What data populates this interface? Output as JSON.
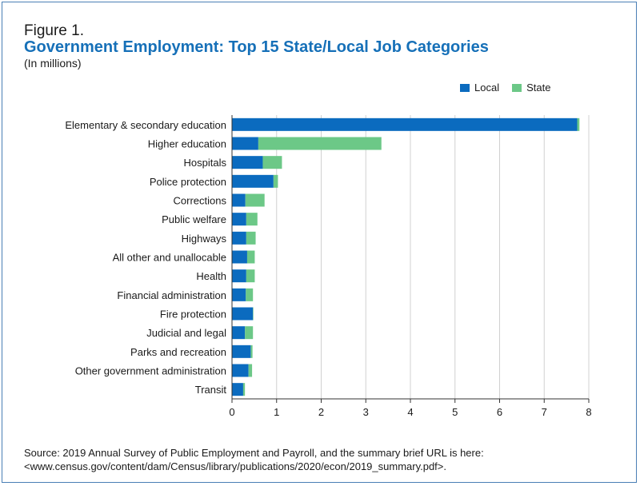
{
  "figure_label": "Figure 1.",
  "chart_data": {
    "type": "bar",
    "orientation": "horizontal",
    "stacked": true,
    "title": "Government Employment: Top 15 State/Local Job Categories",
    "subtitle": "(In millions)",
    "categories": [
      "Elementary & secondary education",
      "Higher education",
      "Hospitals",
      "Police protection",
      "Corrections",
      "Public welfare",
      "Highways",
      "All other and unallocable",
      "Health",
      "Financial administration",
      "Fire protection",
      "Judicial and legal",
      "Parks and recreation",
      "Other government administration",
      "Transit"
    ],
    "series": [
      {
        "name": "Local",
        "color": "#0b6bbf",
        "values": [
          7.74,
          0.59,
          0.69,
          0.93,
          0.3,
          0.32,
          0.32,
          0.34,
          0.32,
          0.31,
          0.47,
          0.29,
          0.42,
          0.37,
          0.25
        ]
      },
      {
        "name": "State",
        "color": "#6cc887",
        "values": [
          0.05,
          2.76,
          0.43,
          0.1,
          0.43,
          0.25,
          0.21,
          0.17,
          0.19,
          0.16,
          0.01,
          0.18,
          0.04,
          0.08,
          0.04
        ]
      }
    ],
    "xlim": [
      0,
      8
    ],
    "xticks": [
      0,
      1,
      2,
      3,
      4,
      5,
      6,
      7,
      8
    ],
    "grid": "vertical",
    "legend_position": "top-right"
  },
  "source_lines": [
    "Source: 2019 Annual Survey of Public Employment and Payroll, and the summary brief URL is here:",
    "<www.census.gov/content/dam/Census/library/publications/2020/econ/2019_summary.pdf>."
  ]
}
